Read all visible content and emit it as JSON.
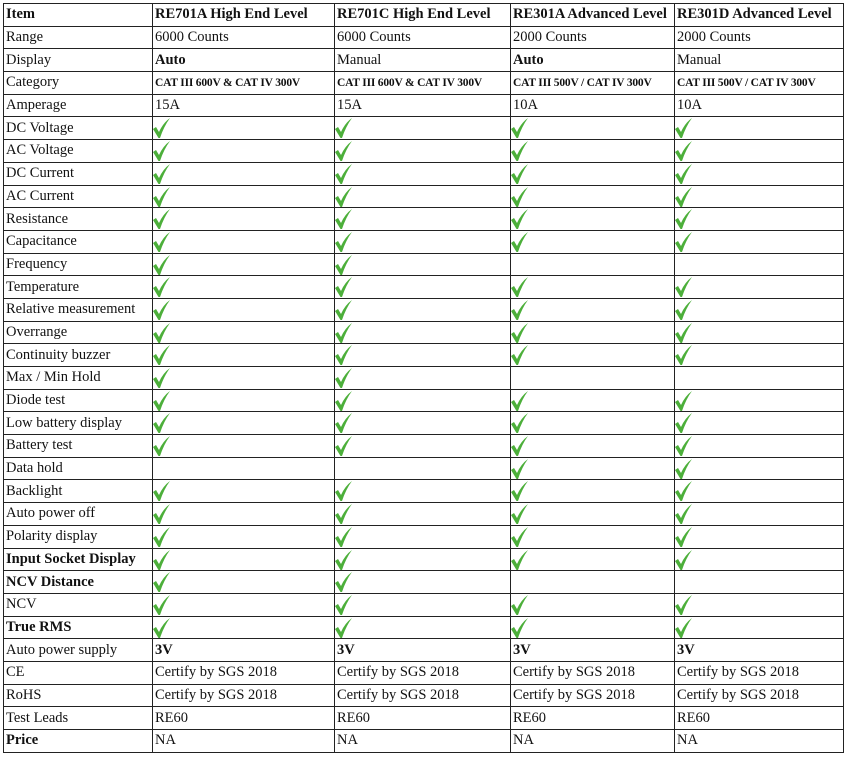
{
  "check_color": "#4caf3a",
  "header": [
    "Item",
    "RE701A High End Level",
    "RE701C High End Level",
    "RE301A Advanced Level",
    "RE301D Advanced Level"
  ],
  "text_rows": [
    {
      "label": "Range",
      "values": [
        "6000 Counts",
        "6000 Counts",
        "2000 Counts",
        "2000 Counts"
      ]
    },
    {
      "label": "Display",
      "values": [
        "Auto",
        "Manual",
        "Auto",
        "Manual"
      ],
      "bold_values": [
        true,
        false,
        true,
        false
      ]
    },
    {
      "label": "Category",
      "values": [
        "CAT III 600V & CAT IV 300V",
        "CAT III 600V & CAT IV 300V",
        "CAT III 500V / CAT IV 300V",
        "CAT III 500V / CAT IV 300V"
      ],
      "style": "cat"
    },
    {
      "label": "Amperage",
      "values": [
        "15A",
        "15A",
        "10A",
        "10A"
      ]
    }
  ],
  "feature_rows": [
    {
      "label": "DC Voltage",
      "checks": [
        true,
        true,
        true,
        true
      ]
    },
    {
      "label": "AC Voltage",
      "checks": [
        true,
        true,
        true,
        true
      ]
    },
    {
      "label": "DC Current",
      "checks": [
        true,
        true,
        true,
        true
      ]
    },
    {
      "label": "AC Current",
      "checks": [
        true,
        true,
        true,
        true
      ]
    },
    {
      "label": "Resistance",
      "checks": [
        true,
        true,
        true,
        true
      ]
    },
    {
      "label": "Capacitance",
      "checks": [
        true,
        true,
        true,
        true
      ]
    },
    {
      "label": "Frequency",
      "checks": [
        true,
        true,
        false,
        false
      ]
    },
    {
      "label": "Temperature",
      "checks": [
        true,
        true,
        true,
        true
      ]
    },
    {
      "label": "Relative measurement",
      "checks": [
        true,
        true,
        true,
        true
      ]
    },
    {
      "label": "Overrange",
      "checks": [
        true,
        true,
        true,
        true
      ]
    },
    {
      "label": "Continuity buzzer",
      "checks": [
        true,
        true,
        true,
        true
      ]
    },
    {
      "label": "Max / Min Hold",
      "checks": [
        true,
        true,
        false,
        false
      ]
    },
    {
      "label": "Diode test",
      "checks": [
        true,
        true,
        true,
        true
      ]
    },
    {
      "label": "Low battery display",
      "checks": [
        true,
        true,
        true,
        true
      ]
    },
    {
      "label": "Battery test",
      "checks": [
        true,
        true,
        true,
        true
      ]
    },
    {
      "label": "Data hold",
      "checks": [
        false,
        false,
        true,
        true
      ]
    },
    {
      "label": "Backlight",
      "checks": [
        true,
        true,
        true,
        true
      ]
    },
    {
      "label": "Auto power off",
      "checks": [
        true,
        true,
        true,
        true
      ]
    },
    {
      "label": "Polarity display",
      "checks": [
        true,
        true,
        true,
        true
      ]
    },
    {
      "label": "Input Socket Display",
      "checks": [
        true,
        true,
        true,
        true
      ],
      "bold_label": true
    },
    {
      "label": "NCV Distance",
      "checks": [
        true,
        true,
        false,
        false
      ],
      "bold_label": true
    },
    {
      "label": "NCV",
      "checks": [
        true,
        true,
        true,
        true
      ]
    },
    {
      "label": "True RMS",
      "checks": [
        true,
        true,
        true,
        true
      ],
      "bold_label": true
    }
  ],
  "footer_rows": [
    {
      "label": "Auto power supply",
      "values": [
        "3V",
        "3V",
        "3V",
        "3V"
      ],
      "bold_values": [
        true,
        true,
        true,
        true
      ]
    },
    {
      "label": "CE",
      "values": [
        "Certify by SGS 2018",
        "Certify by SGS 2018",
        "Certify by SGS 2018",
        "Certify by SGS 2018"
      ]
    },
    {
      "label": "RoHS",
      "values": [
        "Certify by SGS 2018",
        "Certify by SGS 2018",
        "Certify by SGS 2018",
        "Certify by SGS 2018"
      ]
    },
    {
      "label": "Test Leads",
      "values": [
        "RE60",
        "RE60",
        "RE60",
        "RE60"
      ]
    },
    {
      "label": "Price",
      "values": [
        "NA",
        "NA",
        "NA",
        "NA"
      ],
      "bold_label": true
    }
  ]
}
